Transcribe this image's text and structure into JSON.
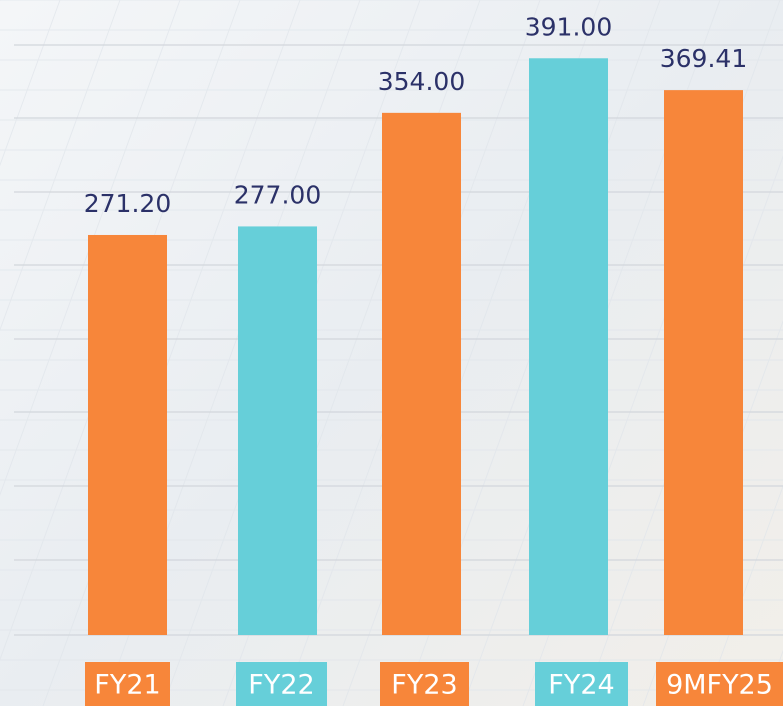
{
  "chart_data": {
    "type": "bar",
    "categories": [
      "FY21",
      "FY22",
      "FY23",
      "FY24",
      "9MFY25"
    ],
    "values": [
      271.2,
      277,
      354,
      391,
      369.41
    ],
    "value_labels": [
      "271.20",
      "277.00",
      "354.00",
      "391.00",
      "369.41"
    ],
    "colors": [
      "#f7863a",
      "#66cfd9",
      "#f7863a",
      "#66cfd9",
      "#f7863a"
    ],
    "ylim": [
      0,
      400
    ]
  }
}
